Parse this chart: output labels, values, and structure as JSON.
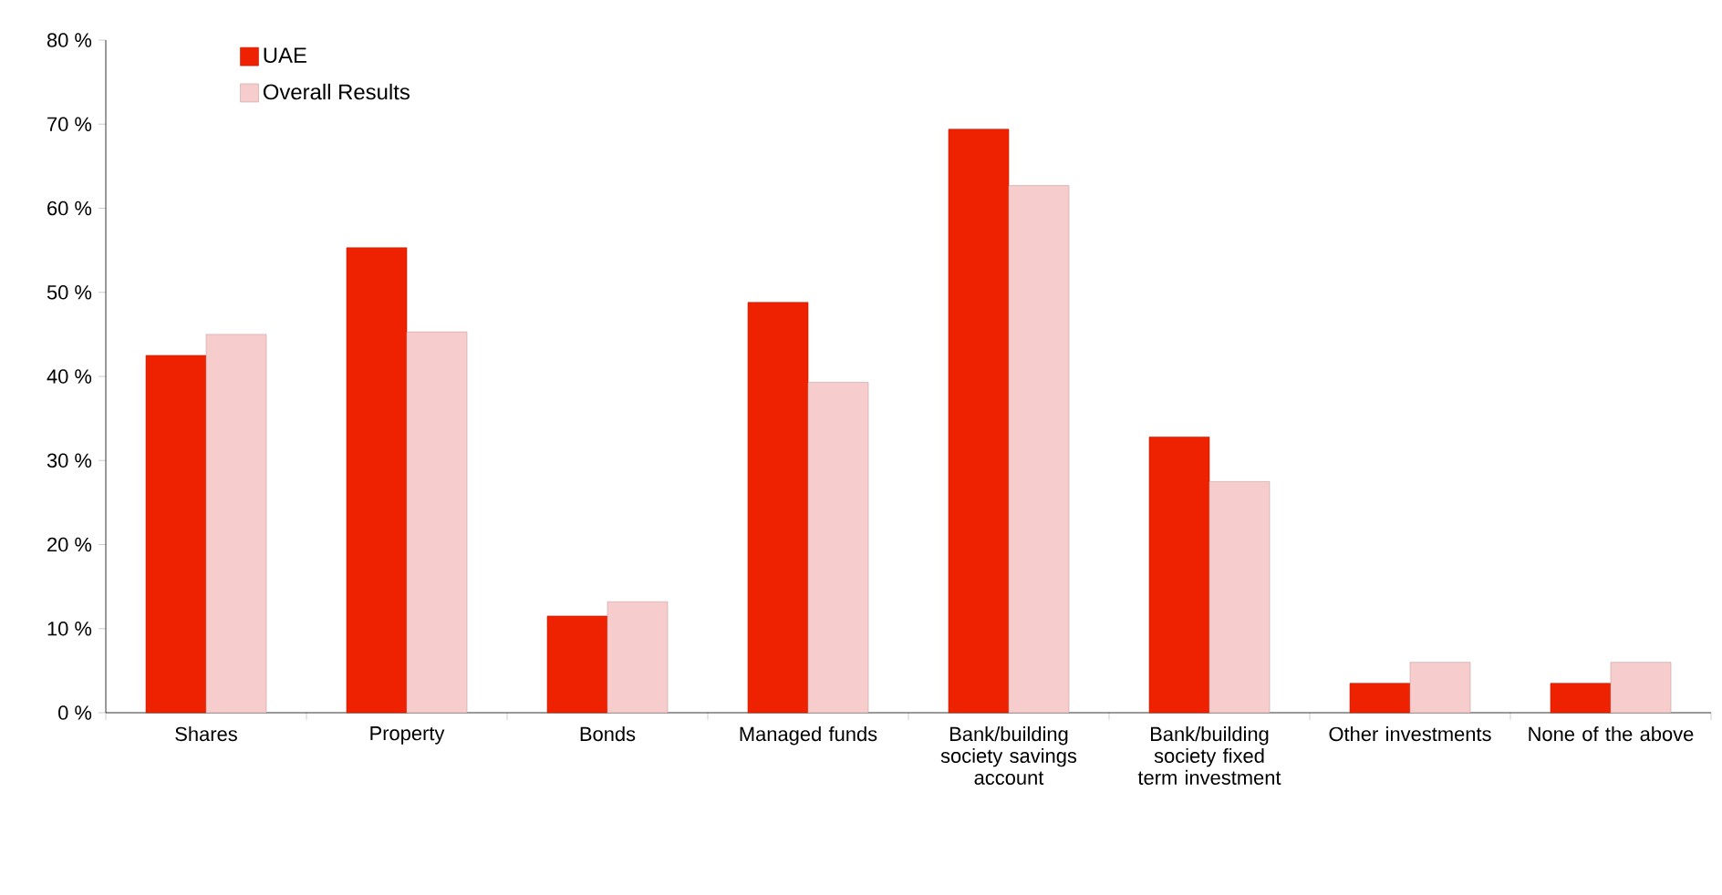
{
  "chart_data": {
    "type": "bar",
    "categories": [
      "Shares",
      "Property",
      "Bonds",
      "Managed funds",
      "Bank/building society savings account",
      "Bank/building society fixed term investment",
      "Other investments",
      "None of the above"
    ],
    "series": [
      {
        "name": "UAE",
        "color": "#ee2200",
        "values": [
          42.5,
          55.3,
          11.5,
          48.8,
          69.4,
          32.8,
          3.5,
          3.5
        ]
      },
      {
        "name": "Overall Results",
        "color": "#f7cccc",
        "values": [
          45,
          45.3,
          13.2,
          39.3,
          62.7,
          27.5,
          6,
          6
        ]
      }
    ],
    "ylim": [
      0,
      80
    ],
    "yticks": [
      {
        "value": 0,
        "label": "0 %"
      },
      {
        "value": 10,
        "label": "10 %"
      },
      {
        "value": 20,
        "label": "20 %"
      },
      {
        "value": 30,
        "label": "30 %"
      },
      {
        "value": 40,
        "label": "40 %"
      },
      {
        "value": 50,
        "label": "50 %"
      },
      {
        "value": 60,
        "label": "60 %"
      },
      {
        "value": 70,
        "label": "70 %"
      },
      {
        "value": 80,
        "label": "80 %"
      }
    ],
    "grid": false,
    "legend": "top left"
  }
}
